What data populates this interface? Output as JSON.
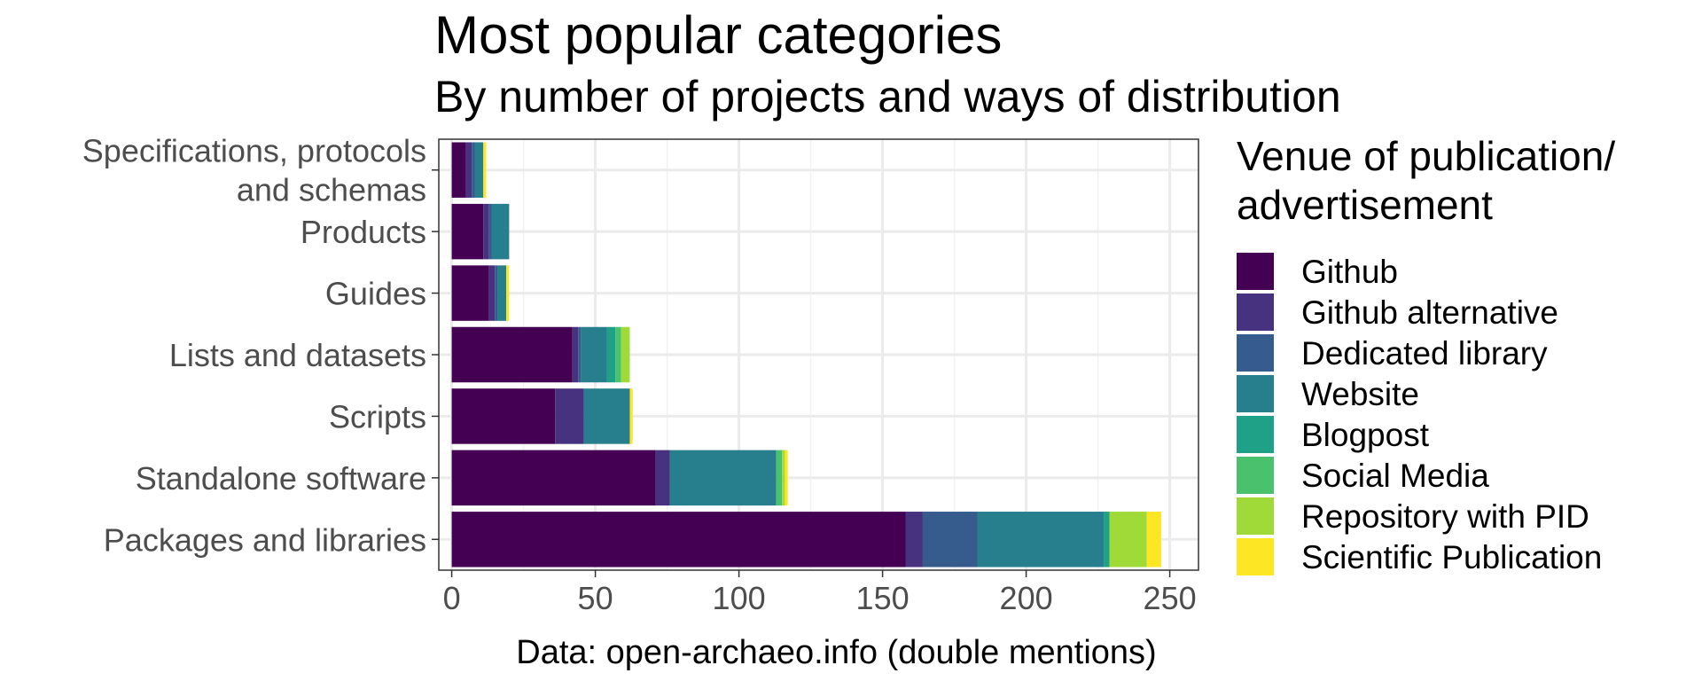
{
  "chart_data": {
    "type": "bar",
    "orientation": "horizontal",
    "stacked": true,
    "title": "Most popular categories",
    "subtitle": "By number of projects and ways of distribution",
    "xlabel": "Data: open-archaeo.info (double mentions)",
    "ylabel": "",
    "xlim": [
      -4.5,
      260
    ],
    "x_ticks": [
      0,
      50,
      100,
      150,
      200,
      250
    ],
    "grid": true,
    "categories": [
      "Packages and libraries",
      "Standalone software",
      "Scripts",
      "Lists and datasets",
      "Guides",
      "Products",
      "Specifications, protocols\nand schemas"
    ],
    "legend": {
      "title": "Venue of publication/\nadvertisement",
      "position": "right"
    },
    "series": [
      {
        "name": "Scientific Publication",
        "color": "#FDE725",
        "values": [
          5,
          1,
          1,
          0,
          1,
          0,
          1
        ]
      },
      {
        "name": "Repository with PID",
        "color": "#A0DA39",
        "values": [
          13,
          1,
          0,
          3,
          0,
          0,
          0
        ]
      },
      {
        "name": "Social Media",
        "color": "#4AC16D",
        "values": [
          0,
          2,
          0,
          2,
          0,
          0,
          0
        ]
      },
      {
        "name": "Blogpost",
        "color": "#1FA187",
        "values": [
          2,
          0,
          0,
          3,
          0,
          0,
          0
        ]
      },
      {
        "name": "Website",
        "color": "#277F8E",
        "values": [
          44,
          37,
          16,
          9,
          3,
          6,
          3
        ]
      },
      {
        "name": "Dedicated library",
        "color": "#365C8D",
        "values": [
          19,
          0,
          0,
          1,
          1,
          1,
          1
        ]
      },
      {
        "name": "Github alternative",
        "color": "#46327E",
        "values": [
          6,
          5,
          10,
          2,
          2,
          2,
          2
        ]
      },
      {
        "name": "Github",
        "color": "#440154",
        "values": [
          158,
          71,
          36,
          42,
          13,
          11,
          5
        ]
      }
    ],
    "legend_order": [
      "Github",
      "Github alternative",
      "Dedicated library",
      "Website",
      "Blogpost",
      "Social Media",
      "Repository with PID",
      "Scientific Publication"
    ]
  }
}
